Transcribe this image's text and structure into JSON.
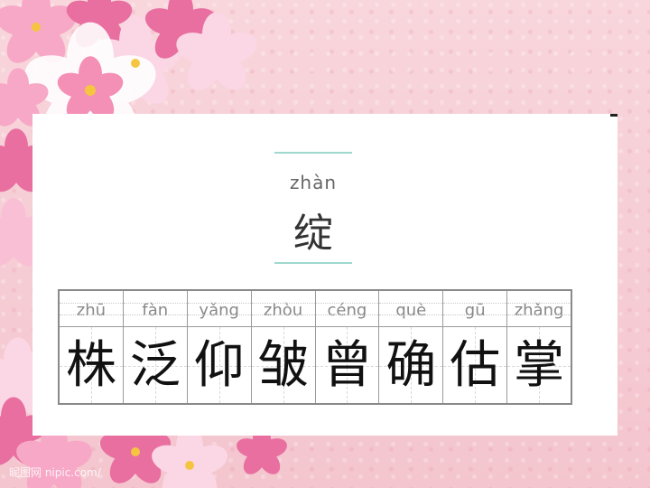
{
  "featured": {
    "pinyin": "zhàn",
    "hanzi": "绽"
  },
  "characters": [
    {
      "pinyin": "zhū",
      "hanzi": "株"
    },
    {
      "pinyin": "fàn",
      "hanzi": "泛"
    },
    {
      "pinyin": "yǎng",
      "hanzi": "仰"
    },
    {
      "pinyin": "zhòu",
      "hanzi": "皱"
    },
    {
      "pinyin": "céng",
      "hanzi": "曾"
    },
    {
      "pinyin": "què",
      "hanzi": "确"
    },
    {
      "pinyin": "gū",
      "hanzi": "估"
    },
    {
      "pinyin": "zhǎng",
      "hanzi": "掌"
    }
  ],
  "watermark": "昵图网 nipic.com/",
  "colors": {
    "background": "#f6cfd6",
    "accent_line": "#9fd8cf",
    "flower": "#e86fa0"
  }
}
